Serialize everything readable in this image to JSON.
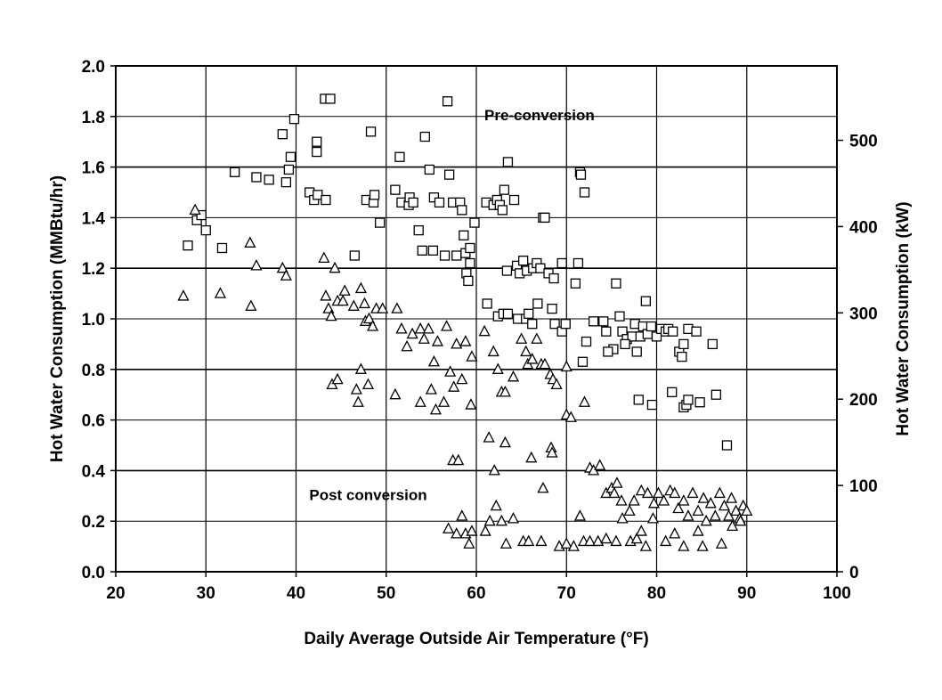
{
  "chart_data": {
    "type": "scatter",
    "title": "",
    "xlabel": "Daily Average Outside Air Temperature (°F)",
    "ylabel": "Hot Water Consumption (MMBtu/hr)",
    "y2label": "Hot Water Consumption (kW)",
    "xlim": [
      20,
      100
    ],
    "ylim": [
      0,
      2.0
    ],
    "y2lim": [
      0,
      586.2
    ],
    "x_ticks": [
      20,
      30,
      40,
      50,
      60,
      70,
      80,
      90,
      100
    ],
    "y_ticks": [
      "0.0",
      "0.2",
      "0.4",
      "0.6",
      "0.8",
      "1.0",
      "1.2",
      "1.4",
      "1.6",
      "1.8",
      "2.0"
    ],
    "y2_ticks": [
      0,
      100,
      200,
      300,
      400,
      500
    ],
    "grid": true,
    "annotations": [
      {
        "text": "Pre-conversion",
        "x": 67,
        "y": 1.8
      },
      {
        "text": "Post conversion",
        "x": 48,
        "y": 0.29
      }
    ],
    "series": [
      {
        "marker": "square",
        "values": [
          [
            28,
            1.29
          ],
          [
            29,
            1.39
          ],
          [
            29.5,
            1.41
          ],
          [
            30,
            1.35
          ],
          [
            31.8,
            1.28
          ],
          [
            33.2,
            1.58
          ],
          [
            35.6,
            1.56
          ],
          [
            37,
            1.55
          ],
          [
            38.5,
            1.73
          ],
          [
            38.9,
            1.54
          ],
          [
            39.2,
            1.59
          ],
          [
            39.4,
            1.64
          ],
          [
            39.8,
            1.79
          ],
          [
            41.5,
            1.5
          ],
          [
            42,
            1.47
          ],
          [
            42.3,
            1.7
          ],
          [
            42.3,
            1.66
          ],
          [
            42.4,
            1.49
          ],
          [
            43.2,
            1.87
          ],
          [
            43.3,
            1.47
          ],
          [
            43.8,
            1.87
          ],
          [
            46.5,
            1.25
          ],
          [
            47.8,
            1.47
          ],
          [
            48.3,
            1.74
          ],
          [
            48.6,
            1.46
          ],
          [
            48.7,
            1.49
          ],
          [
            49.3,
            1.38
          ],
          [
            51,
            1.51
          ],
          [
            51.5,
            1.64
          ],
          [
            51.7,
            1.46
          ],
          [
            52.5,
            1.45
          ],
          [
            52.6,
            1.48
          ],
          [
            53,
            1.46
          ],
          [
            53.6,
            1.35
          ],
          [
            54,
            1.27
          ],
          [
            54.3,
            1.72
          ],
          [
            54.8,
            1.59
          ],
          [
            55.2,
            1.27
          ],
          [
            55.3,
            1.48
          ],
          [
            55.9,
            1.46
          ],
          [
            56.5,
            1.25
          ],
          [
            56.8,
            1.86
          ],
          [
            57,
            1.57
          ],
          [
            57.4,
            1.46
          ],
          [
            57.8,
            1.25
          ],
          [
            58.2,
            1.46
          ],
          [
            58.4,
            1.43
          ],
          [
            58.6,
            1.33
          ],
          [
            58.8,
            1.26
          ],
          [
            58.9,
            1.18
          ],
          [
            59.1,
            1.15
          ],
          [
            59.3,
            1.22
          ],
          [
            59.3,
            1.28
          ],
          [
            59.8,
            1.38
          ],
          [
            61.1,
            1.46
          ],
          [
            61.9,
            1.45
          ],
          [
            62.3,
            1.47
          ],
          [
            62.6,
            1.45
          ],
          [
            62.9,
            1.43
          ],
          [
            63.1,
            1.51
          ],
          [
            63.5,
            1.62
          ],
          [
            64.2,
            1.47
          ],
          [
            67.4,
            1.4
          ],
          [
            67.6,
            1.4
          ],
          [
            71.5,
            1.58
          ],
          [
            71.6,
            1.57
          ],
          [
            72,
            1.5
          ],
          [
            63.4,
            1.19
          ],
          [
            64.5,
            1.21
          ],
          [
            64.8,
            1.18
          ],
          [
            65.2,
            1.23
          ],
          [
            65.6,
            1.19
          ],
          [
            66.3,
            1.2
          ],
          [
            66.7,
            1.22
          ],
          [
            67.1,
            1.2
          ],
          [
            68,
            1.18
          ],
          [
            68.6,
            1.16
          ],
          [
            69.5,
            1.22
          ],
          [
            71,
            1.14
          ],
          [
            71.3,
            1.22
          ],
          [
            61.2,
            1.06
          ],
          [
            62.4,
            1.01
          ],
          [
            63,
            1.02
          ],
          [
            63.5,
            1.02
          ],
          [
            64.6,
            1
          ],
          [
            65.5,
            1
          ],
          [
            65.8,
            1.02
          ],
          [
            66.2,
            0.98
          ],
          [
            66.8,
            1.06
          ],
          [
            68.4,
            1.04
          ],
          [
            68.7,
            0.98
          ],
          [
            69.5,
            0.95
          ],
          [
            69.9,
            0.98
          ],
          [
            73,
            0.99
          ],
          [
            74.1,
            0.99
          ],
          [
            74.4,
            0.95
          ],
          [
            75.2,
            0.88
          ],
          [
            75.5,
            1.14
          ],
          [
            75.9,
            1.01
          ],
          [
            76.2,
            0.95
          ],
          [
            76.7,
            0.92
          ],
          [
            77.3,
            0.93
          ],
          [
            77.6,
            0.98
          ],
          [
            78.2,
            0.93
          ],
          [
            78.5,
            0.97
          ],
          [
            78.8,
            1.07
          ],
          [
            79,
            0.94
          ],
          [
            79.4,
            0.97
          ],
          [
            80,
            0.93
          ],
          [
            80.5,
            0.96
          ],
          [
            81,
            0.95
          ],
          [
            81.3,
            0.96
          ],
          [
            81.8,
            0.95
          ],
          [
            82.5,
            0.87
          ],
          [
            83,
            0.9
          ],
          [
            83.5,
            0.96
          ],
          [
            84.4,
            0.95
          ],
          [
            86.2,
            0.9
          ],
          [
            72.2,
            0.91
          ],
          [
            71.8,
            0.83
          ],
          [
            74.6,
            0.87
          ],
          [
            76.5,
            0.9
          ],
          [
            77.8,
            0.87
          ],
          [
            82.8,
            0.85
          ],
          [
            78,
            0.68
          ],
          [
            79.5,
            0.66
          ],
          [
            81.7,
            0.71
          ],
          [
            83,
            0.65
          ],
          [
            83.3,
            0.66
          ],
          [
            83.5,
            0.68
          ],
          [
            84.8,
            0.67
          ],
          [
            86.6,
            0.7
          ],
          [
            87.8,
            0.5
          ]
        ]
      },
      {
        "marker": "triangle",
        "values": [
          [
            27.5,
            1.09
          ],
          [
            28.8,
            1.43
          ],
          [
            31.6,
            1.1
          ],
          [
            34.9,
            1.3
          ],
          [
            35,
            1.05
          ],
          [
            35.6,
            1.21
          ],
          [
            38.5,
            1.2
          ],
          [
            38.9,
            1.17
          ],
          [
            43.1,
            1.24
          ],
          [
            43.3,
            1.09
          ],
          [
            43.6,
            1.04
          ],
          [
            43.9,
            1.01
          ],
          [
            44.3,
            1.2
          ],
          [
            44.6,
            1.07
          ],
          [
            45.2,
            1.07
          ],
          [
            45.4,
            1.11
          ],
          [
            46.4,
            1.05
          ],
          [
            47.2,
            1.12
          ],
          [
            47.6,
            1.06
          ],
          [
            47.7,
            0.99
          ],
          [
            48.1,
            1
          ],
          [
            48.5,
            0.97
          ],
          [
            48.9,
            1.04
          ],
          [
            49.6,
            1.04
          ],
          [
            51.2,
            1.04
          ],
          [
            51.7,
            0.96
          ],
          [
            52.3,
            0.89
          ],
          [
            52.9,
            0.94
          ],
          [
            53.8,
            0.96
          ],
          [
            54.2,
            0.92
          ],
          [
            54.7,
            0.96
          ],
          [
            55.3,
            0.83
          ],
          [
            55.7,
            0.91
          ],
          [
            56.7,
            0.97
          ],
          [
            57.1,
            0.79
          ],
          [
            57.8,
            0.9
          ],
          [
            58.8,
            0.91
          ],
          [
            59.5,
            0.85
          ],
          [
            44,
            0.74
          ],
          [
            44.6,
            0.76
          ],
          [
            46.7,
            0.72
          ],
          [
            46.9,
            0.67
          ],
          [
            47.2,
            0.8
          ],
          [
            48,
            0.74
          ],
          [
            51,
            0.7
          ],
          [
            53.8,
            0.67
          ],
          [
            55,
            0.72
          ],
          [
            55.5,
            0.64
          ],
          [
            56.4,
            0.67
          ],
          [
            57.5,
            0.73
          ],
          [
            58.4,
            0.76
          ],
          [
            59.4,
            0.66
          ],
          [
            57.4,
            0.44
          ],
          [
            58,
            0.44
          ],
          [
            60.9,
            0.95
          ],
          [
            61.9,
            0.87
          ],
          [
            62.4,
            0.8
          ],
          [
            62.8,
            0.71
          ],
          [
            63.2,
            0.71
          ],
          [
            64.1,
            0.77
          ],
          [
            65,
            0.92
          ],
          [
            65.5,
            0.87
          ],
          [
            65.7,
            0.82
          ],
          [
            66.2,
            0.84
          ],
          [
            66.7,
            0.92
          ],
          [
            67.2,
            0.82
          ],
          [
            67.6,
            0.82
          ],
          [
            68.2,
            0.78
          ],
          [
            68.5,
            0.76
          ],
          [
            68.9,
            0.74
          ],
          [
            70,
            0.81
          ],
          [
            72,
            0.67
          ],
          [
            61.4,
            0.53
          ],
          [
            62,
            0.4
          ],
          [
            63.2,
            0.51
          ],
          [
            66.1,
            0.45
          ],
          [
            67.4,
            0.33
          ],
          [
            68.3,
            0.49
          ],
          [
            68.4,
            0.47
          ],
          [
            70,
            0.62
          ],
          [
            70.5,
            0.61
          ],
          [
            72.6,
            0.41
          ],
          [
            73,
            0.4
          ],
          [
            73.7,
            0.42
          ],
          [
            74.4,
            0.31
          ],
          [
            75,
            0.33
          ],
          [
            75.3,
            0.31
          ],
          [
            75.6,
            0.35
          ],
          [
            76.1,
            0.28
          ],
          [
            77,
            0.24
          ],
          [
            77.5,
            0.28
          ],
          [
            78.3,
            0.32
          ],
          [
            79,
            0.31
          ],
          [
            79.7,
            0.27
          ],
          [
            80.2,
            0.31
          ],
          [
            80.8,
            0.28
          ],
          [
            81.5,
            0.32
          ],
          [
            82,
            0.31
          ],
          [
            82.4,
            0.25
          ],
          [
            83,
            0.28
          ],
          [
            83.5,
            0.22
          ],
          [
            84,
            0.31
          ],
          [
            84.6,
            0.24
          ],
          [
            85.2,
            0.29
          ],
          [
            85.5,
            0.2
          ],
          [
            86,
            0.27
          ],
          [
            86.5,
            0.22
          ],
          [
            87,
            0.31
          ],
          [
            87.5,
            0.26
          ],
          [
            88,
            0.22
          ],
          [
            88.3,
            0.29
          ],
          [
            88.8,
            0.24
          ],
          [
            89.2,
            0.21
          ],
          [
            89.6,
            0.26
          ],
          [
            90,
            0.24
          ],
          [
            56.9,
            0.17
          ],
          [
            57.8,
            0.15
          ],
          [
            58.4,
            0.22
          ],
          [
            58.8,
            0.15
          ],
          [
            59.2,
            0.11
          ],
          [
            59.5,
            0.16
          ],
          [
            61,
            0.16
          ],
          [
            61.5,
            0.2
          ],
          [
            62.2,
            0.26
          ],
          [
            62.8,
            0.2
          ],
          [
            63.3,
            0.11
          ],
          [
            64.1,
            0.21
          ],
          [
            65.2,
            0.12
          ],
          [
            65.8,
            0.12
          ],
          [
            67.2,
            0.12
          ],
          [
            69.2,
            0.1
          ],
          [
            70,
            0.11
          ],
          [
            70.8,
            0.1
          ],
          [
            71.5,
            0.22
          ],
          [
            71.9,
            0.12
          ],
          [
            72.6,
            0.12
          ],
          [
            73.5,
            0.12
          ],
          [
            74.4,
            0.13
          ],
          [
            75.5,
            0.12
          ],
          [
            76.2,
            0.21
          ],
          [
            77.1,
            0.12
          ],
          [
            77.8,
            0.13
          ],
          [
            78.3,
            0.16
          ],
          [
            78.8,
            0.1
          ],
          [
            79.6,
            0.21
          ],
          [
            81,
            0.12
          ],
          [
            82,
            0.15
          ],
          [
            83,
            0.1
          ],
          [
            84.6,
            0.16
          ],
          [
            85.1,
            0.1
          ],
          [
            87.2,
            0.11
          ],
          [
            88.4,
            0.18
          ],
          [
            89.3,
            0.2
          ]
        ]
      }
    ]
  }
}
